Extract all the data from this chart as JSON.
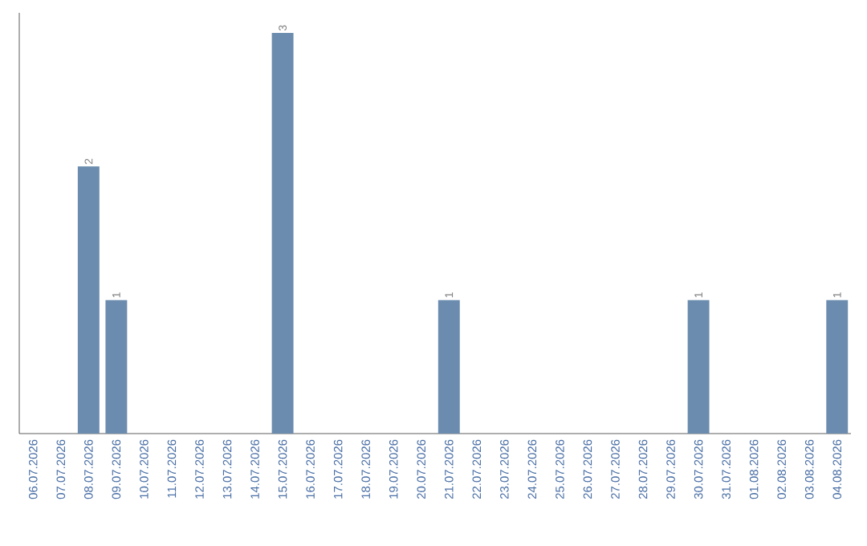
{
  "chart_data": {
    "type": "bar",
    "categories": [
      "06.07.2026",
      "07.07.2026",
      "08.07.2026",
      "09.07.2026",
      "10.07.2026",
      "11.07.2026",
      "12.07.2026",
      "13.07.2026",
      "14.07.2026",
      "15.07.2026",
      "16.07.2026",
      "17.07.2026",
      "18.07.2026",
      "19.07.2026",
      "20.07.2026",
      "21.07.2026",
      "22.07.2026",
      "23.07.2026",
      "24.07.2026",
      "25.07.2026",
      "26.07.2026",
      "27.07.2026",
      "28.07.2026",
      "29.07.2026",
      "30.07.2026",
      "31.07.2026",
      "01.08.2026",
      "02.08.2026",
      "03.08.2026",
      "04.08.2026"
    ],
    "values": [
      0,
      0,
      2,
      1,
      0,
      0,
      0,
      0,
      0,
      3,
      0,
      0,
      0,
      0,
      0,
      1,
      0,
      0,
      0,
      0,
      0,
      0,
      0,
      0,
      1,
      0,
      0,
      0,
      0,
      1
    ],
    "value_labels": [
      null,
      null,
      "2",
      "1",
      null,
      null,
      null,
      null,
      null,
      "3",
      null,
      null,
      null,
      null,
      null,
      "1",
      null,
      null,
      null,
      null,
      null,
      null,
      null,
      null,
      "1",
      null,
      null,
      null,
      null,
      "1"
    ],
    "color": "#6b8cae",
    "tick_labels": "x",
    "grid": false
  }
}
